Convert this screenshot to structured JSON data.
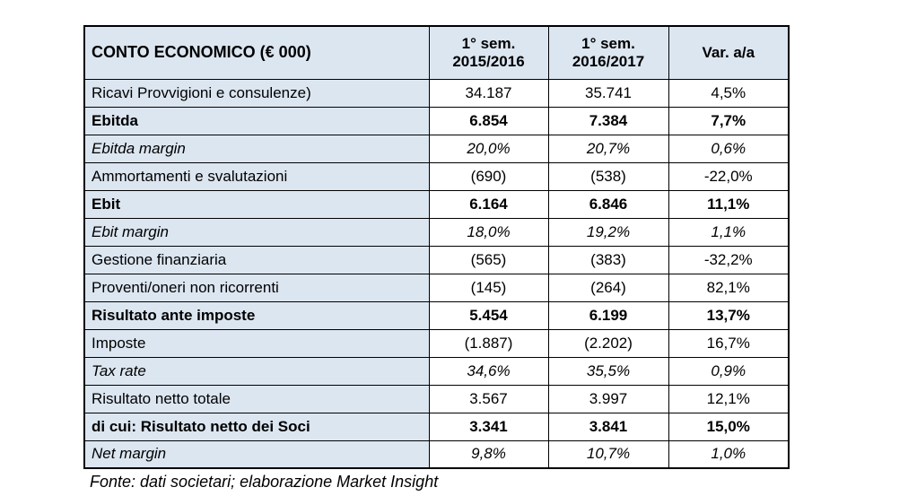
{
  "table": {
    "header": {
      "title": "CONTO ECONOMICO (€ 000)",
      "columns": [
        {
          "line1": "1° sem.",
          "line2": "2015/2016"
        },
        {
          "line1": "1° sem.",
          "line2": "2016/2017"
        },
        {
          "line1": "Var. a/a",
          "line2": ""
        }
      ]
    },
    "rows": [
      {
        "label": "Ricavi Provvigioni e consulenze)",
        "style": "normal",
        "values": [
          "34.187",
          "35.741",
          "4,5%"
        ]
      },
      {
        "label": "Ebitda",
        "style": "bold",
        "values": [
          "6.854",
          "7.384",
          "7,7%"
        ]
      },
      {
        "label": "Ebitda margin",
        "style": "italic",
        "values": [
          "20,0%",
          "20,7%",
          "0,6%"
        ]
      },
      {
        "label": "Ammortamenti e svalutazioni",
        "style": "normal",
        "values": [
          "(690)",
          "(538)",
          "-22,0%"
        ]
      },
      {
        "label": "Ebit",
        "style": "bold",
        "values": [
          "6.164",
          "6.846",
          "11,1%"
        ]
      },
      {
        "label": "Ebit margin",
        "style": "italic",
        "values": [
          "18,0%",
          "19,2%",
          "1,1%"
        ]
      },
      {
        "label": "Gestione finanziaria",
        "style": "normal",
        "values": [
          "(565)",
          "(383)",
          "-32,2%"
        ]
      },
      {
        "label": "Proventi/oneri non ricorrenti",
        "style": "normal",
        "values": [
          "(145)",
          "(264)",
          "82,1%"
        ]
      },
      {
        "label": "Risultato ante imposte",
        "style": "bold",
        "values": [
          "5.454",
          "6.199",
          "13,7%"
        ]
      },
      {
        "label": "Imposte",
        "style": "normal",
        "values": [
          "(1.887)",
          "(2.202)",
          "16,7%"
        ]
      },
      {
        "label": "Tax rate",
        "style": "italic",
        "values": [
          "34,6%",
          "35,5%",
          "0,9%"
        ]
      },
      {
        "label": "Risultato netto totale",
        "style": "normal",
        "values": [
          "3.567",
          "3.997",
          "12,1%"
        ]
      },
      {
        "label": "di cui: Risultato netto dei Soci",
        "style": "bold",
        "values": [
          "3.341",
          "3.841",
          "15,0%"
        ]
      },
      {
        "label": "Net margin",
        "style": "italic",
        "values": [
          "9,8%",
          "10,7%",
          "1,0%"
        ]
      }
    ],
    "footer": "Fonte: dati societari; elaborazione Market Insight",
    "colors": {
      "header_bg": "#dce6f1",
      "label_bg": "#dce6f1",
      "value_bg": "#ffffff",
      "border": "#000000",
      "text": "#000000"
    }
  }
}
